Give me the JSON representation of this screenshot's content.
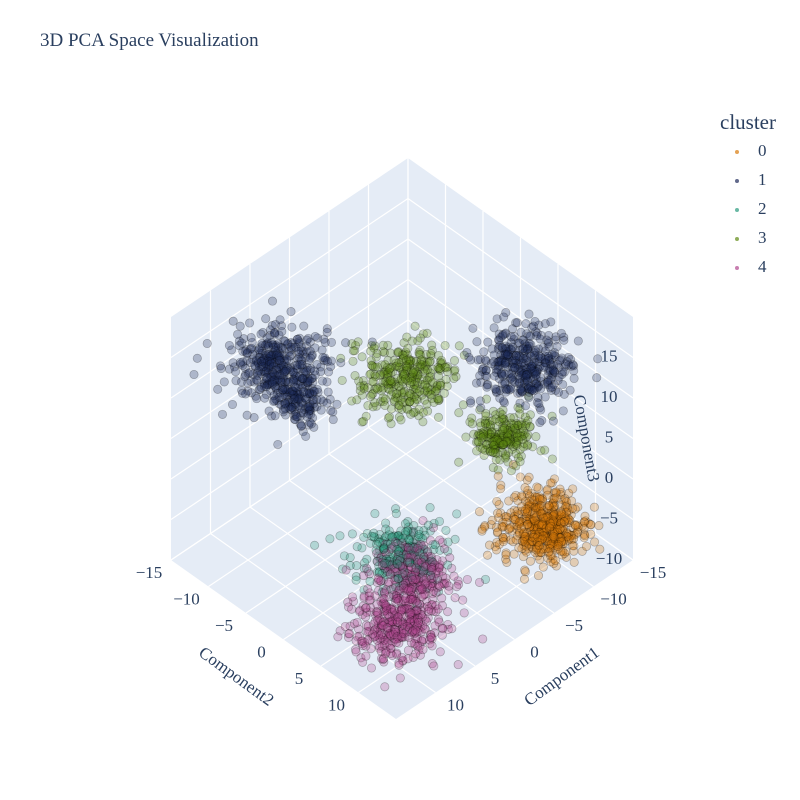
{
  "title": "3D PCA Space Visualization",
  "chart_data": {
    "type": "scatter",
    "projection": "3d",
    "title": "3D PCA Space Visualization",
    "axes": {
      "x": {
        "label": "Component1",
        "range": [
          -15,
          15
        ],
        "ticks": [
          -15,
          -10,
          -5,
          0,
          5,
          10
        ],
        "tick_labels": [
          "−15",
          "−10",
          "−5",
          "0",
          "5",
          "10"
        ]
      },
      "y": {
        "label": "Component2",
        "range": [
          -15,
          15
        ],
        "ticks": [
          -15,
          -10,
          -5,
          0,
          5,
          10
        ],
        "tick_labels": [
          "−15",
          "−10",
          "−5",
          "0",
          "5",
          "10"
        ]
      },
      "z": {
        "label": "Component3",
        "range": [
          -10,
          20
        ],
        "ticks": [
          -10,
          -5,
          0,
          5,
          10,
          15
        ],
        "tick_labels": [
          "−10",
          "−5",
          "0",
          "5",
          "10",
          "15"
        ]
      }
    },
    "grid": true,
    "background_color": "#e5ecf6",
    "legend": {
      "title": "cluster",
      "placement": "top-right"
    },
    "series": [
      {
        "name": "0",
        "color": "#d97b0b",
        "clusters": [
          {
            "center": [
              -7,
              11,
              -3
            ],
            "spread": [
              2.0,
              2.0,
              1.5
            ],
            "count": 380
          },
          {
            "center": [
              -7,
              13,
              -2.5
            ],
            "spread": [
              1.2,
              1.2,
              1.0
            ],
            "count": 160
          }
        ]
      },
      {
        "name": "1",
        "color": "#1e2a5a",
        "clusters": [
          {
            "center": [
              8,
              -8,
              14
            ],
            "spread": [
              2.2,
              2.2,
              1.2
            ],
            "count": 380
          },
          {
            "center": [
              -8,
              8,
              14
            ],
            "spread": [
              2.2,
              2.2,
              1.2
            ],
            "count": 380
          },
          {
            "center": [
              7,
              -6,
              10
            ],
            "spread": [
              1.4,
              1.4,
              1.0
            ],
            "count": 130
          }
        ]
      },
      {
        "name": "2",
        "color": "#2a9a7e",
        "clusters": [
          {
            "center": [
              4,
              4,
              -4
            ],
            "spread": [
              2.0,
              2.0,
              1.2
            ],
            "count": 260
          }
        ]
      },
      {
        "name": "3",
        "color": "#5f8a12",
        "clusters": [
          {
            "center": [
              -8,
              -8,
              2
            ],
            "spread": [
              2.2,
              2.2,
              1.2
            ],
            "count": 320
          },
          {
            "center": [
              -10,
              3,
              1
            ],
            "spread": [
              1.5,
              1.5,
              1.0
            ],
            "count": 220
          }
        ]
      },
      {
        "name": "4",
        "color": "#b0478e",
        "clusters": [
          {
            "center": [
              10,
              10,
              -5
            ],
            "spread": [
              2.0,
              2.0,
              1.2
            ],
            "count": 360
          },
          {
            "center": [
              5,
              7,
              -4
            ],
            "spread": [
              2.0,
              2.0,
              1.2
            ],
            "count": 260
          }
        ]
      }
    ]
  }
}
